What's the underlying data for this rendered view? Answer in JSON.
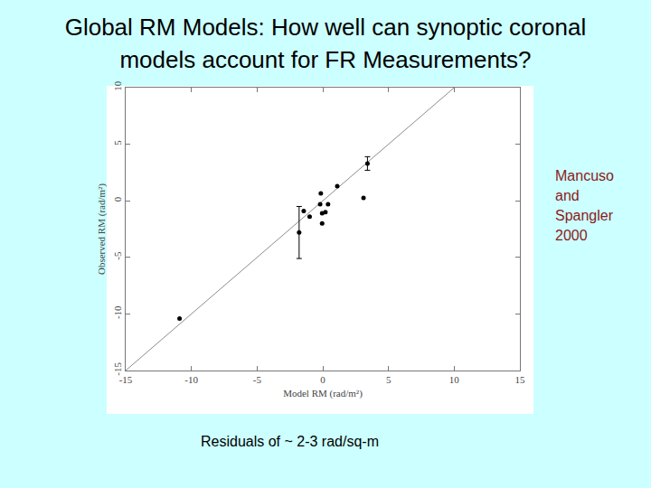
{
  "slide": {
    "title": [
      "Global RM Models:  How well can synoptic coronal",
      "models account for FR Measurements?"
    ],
    "side_note": {
      "lines": [
        "Mancuso",
        "and",
        "Spangler",
        "2000"
      ],
      "color": "#8b1a1a"
    },
    "caption": "Residuals of ~ 2-3 rad/sq-m"
  },
  "chart_data": {
    "type": "scatter",
    "x_label": "Model RM (rad/m²)",
    "y_label": "Observed RM (rad/m²)",
    "series": [
      {
        "type": "scatter",
        "marker": "circle",
        "color": "#000000",
        "x": [
          -10.9,
          -1.8,
          -1.45,
          -1.0,
          -0.15,
          -0.2,
          -0.05,
          0.2,
          -0.05,
          0.4,
          1.1,
          3.1,
          3.4
        ],
        "values": [
          -10.4,
          -2.8,
          -0.9,
          -1.4,
          0.65,
          -0.3,
          -1.1,
          -1.0,
          -2.0,
          -0.3,
          1.3,
          0.25,
          3.3
        ],
        "error": [
          null,
          2.3,
          null,
          null,
          null,
          null,
          null,
          null,
          null,
          null,
          null,
          null,
          0.6
        ]
      },
      {
        "type": "line",
        "color": "#8c8c8c",
        "x": [
          -15,
          10
        ],
        "values": [
          -15,
          10
        ]
      }
    ],
    "xlim": [
      -15,
      15
    ],
    "ylim": [
      -15,
      10
    ],
    "xticks": [
      -15,
      -10,
      -5,
      0,
      5,
      10,
      15
    ],
    "yticks": [
      -15,
      -10,
      -5,
      0,
      5,
      10
    ],
    "grid": false
  }
}
